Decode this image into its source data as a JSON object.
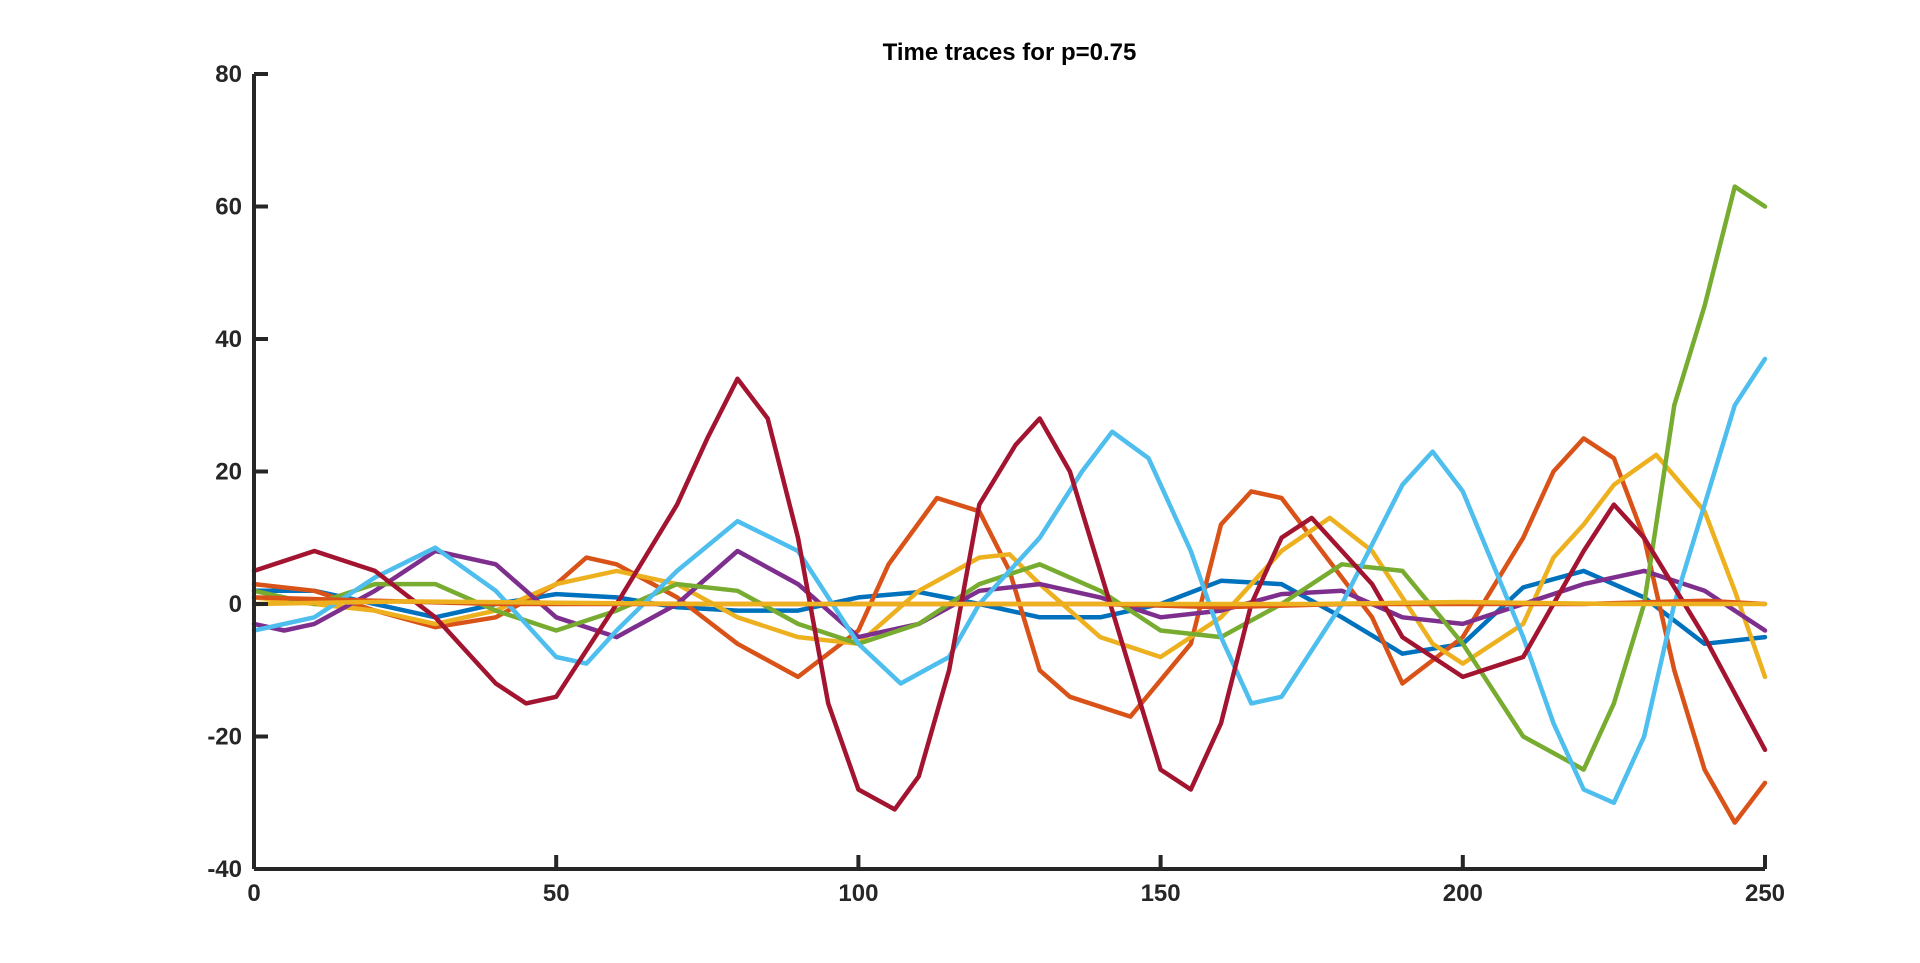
{
  "chart_data": {
    "type": "line",
    "title": "Time traces for p=0.75",
    "xlabel": "",
    "ylabel": "",
    "xlim": [
      0,
      250
    ],
    "ylim": [
      -40,
      80
    ],
    "x_ticks": [
      "0",
      "50",
      "100",
      "150",
      "200",
      "250"
    ],
    "y_ticks": [
      "-40",
      "-20",
      "0",
      "20",
      "40",
      "60",
      "80"
    ],
    "grid": false,
    "legend": false,
    "series": [
      {
        "color": "#0072BD",
        "points": [
          [
            0,
            2
          ],
          [
            10,
            2
          ],
          [
            20,
            0
          ],
          [
            30,
            -2
          ],
          [
            40,
            0
          ],
          [
            50,
            1.5
          ],
          [
            60,
            1
          ],
          [
            70,
            -0.5
          ],
          [
            80,
            -1
          ],
          [
            90,
            -1
          ],
          [
            100,
            1
          ],
          [
            110,
            1.8
          ],
          [
            120,
            0
          ],
          [
            130,
            -2
          ],
          [
            140,
            -2
          ],
          [
            150,
            0
          ],
          [
            160,
            3.5
          ],
          [
            170,
            3
          ],
          [
            180,
            -2
          ],
          [
            190,
            -7.5
          ],
          [
            200,
            -6
          ],
          [
            210,
            2.5
          ],
          [
            220,
            5
          ],
          [
            230,
            1
          ],
          [
            240,
            -6
          ],
          [
            250,
            -5
          ]
        ]
      },
      {
        "color": "#D95319",
        "points": [
          [
            0,
            3
          ],
          [
            10,
            2
          ],
          [
            20,
            -1
          ],
          [
            30,
            -3.5
          ],
          [
            40,
            -2
          ],
          [
            50,
            3
          ],
          [
            55,
            7
          ],
          [
            60,
            6
          ],
          [
            70,
            1
          ],
          [
            80,
            -6
          ],
          [
            90,
            -11
          ],
          [
            100,
            -4
          ],
          [
            105,
            6
          ],
          [
            113,
            16
          ],
          [
            120,
            14
          ],
          [
            125,
            5
          ],
          [
            130,
            -10
          ],
          [
            135,
            -14
          ],
          [
            145,
            -17
          ],
          [
            155,
            -6
          ],
          [
            160,
            12
          ],
          [
            165,
            17
          ],
          [
            170,
            16
          ],
          [
            175,
            10
          ],
          [
            185,
            -2
          ],
          [
            190,
            -12
          ],
          [
            200,
            -5
          ],
          [
            210,
            10
          ],
          [
            215,
            20
          ],
          [
            220,
            25
          ],
          [
            225,
            22
          ],
          [
            230,
            10
          ],
          [
            235,
            -10
          ],
          [
            240,
            -25
          ],
          [
            245,
            -33
          ],
          [
            250,
            -27
          ]
        ]
      },
      {
        "color": "#EDB120",
        "points": [
          [
            0,
            1
          ],
          [
            10,
            0
          ],
          [
            20,
            -1
          ],
          [
            30,
            -3
          ],
          [
            40,
            -1
          ],
          [
            50,
            3
          ],
          [
            60,
            5
          ],
          [
            70,
            3
          ],
          [
            80,
            -2
          ],
          [
            90,
            -5
          ],
          [
            100,
            -6
          ],
          [
            110,
            2
          ],
          [
            120,
            7
          ],
          [
            125,
            7.5
          ],
          [
            130,
            3
          ],
          [
            140,
            -5
          ],
          [
            150,
            -8
          ],
          [
            160,
            -2
          ],
          [
            170,
            8
          ],
          [
            178,
            13
          ],
          [
            185,
            8
          ],
          [
            195,
            -6
          ],
          [
            200,
            -9
          ],
          [
            210,
            -3
          ],
          [
            215,
            7
          ],
          [
            220,
            12
          ],
          [
            225,
            18
          ],
          [
            232,
            22.5
          ],
          [
            240,
            14
          ],
          [
            245,
            2
          ],
          [
            250,
            -11
          ]
        ]
      },
      {
        "color": "#7E2F8E",
        "points": [
          [
            0,
            -3
          ],
          [
            5,
            -4
          ],
          [
            10,
            -3
          ],
          [
            20,
            2
          ],
          [
            30,
            8
          ],
          [
            40,
            6
          ],
          [
            50,
            -2
          ],
          [
            60,
            -5
          ],
          [
            70,
            0
          ],
          [
            80,
            8
          ],
          [
            90,
            3
          ],
          [
            100,
            -5
          ],
          [
            110,
            -3
          ],
          [
            120,
            2
          ],
          [
            130,
            3
          ],
          [
            140,
            1
          ],
          [
            150,
            -2
          ],
          [
            160,
            -1
          ],
          [
            170,
            1.5
          ],
          [
            180,
            2
          ],
          [
            190,
            -2
          ],
          [
            200,
            -3
          ],
          [
            210,
            0
          ],
          [
            220,
            3
          ],
          [
            230,
            5
          ],
          [
            240,
            2
          ],
          [
            250,
            -4
          ]
        ]
      },
      {
        "color": "#77AC30",
        "points": [
          [
            0,
            2
          ],
          [
            10,
            0
          ],
          [
            20,
            3
          ],
          [
            30,
            3
          ],
          [
            40,
            -1
          ],
          [
            50,
            -4
          ],
          [
            60,
            -1
          ],
          [
            70,
            3
          ],
          [
            80,
            2
          ],
          [
            90,
            -3
          ],
          [
            100,
            -6
          ],
          [
            110,
            -3
          ],
          [
            120,
            3
          ],
          [
            130,
            6
          ],
          [
            140,
            2
          ],
          [
            150,
            -4
          ],
          [
            160,
            -5
          ],
          [
            170,
            0
          ],
          [
            180,
            6
          ],
          [
            190,
            5
          ],
          [
            200,
            -6
          ],
          [
            210,
            -20
          ],
          [
            220,
            -25
          ],
          [
            225,
            -15
          ],
          [
            230,
            0
          ],
          [
            235,
            30
          ],
          [
            240,
            45
          ],
          [
            245,
            63
          ],
          [
            250,
            60
          ]
        ]
      },
      {
        "color": "#4DBEEE",
        "points": [
          [
            0,
            -4
          ],
          [
            10,
            -2
          ],
          [
            20,
            4
          ],
          [
            30,
            8.5
          ],
          [
            40,
            2
          ],
          [
            50,
            -8
          ],
          [
            55,
            -9
          ],
          [
            60,
            -4
          ],
          [
            70,
            5
          ],
          [
            80,
            12.5
          ],
          [
            90,
            8
          ],
          [
            100,
            -6
          ],
          [
            107,
            -12
          ],
          [
            115,
            -8
          ],
          [
            120,
            0
          ],
          [
            130,
            10
          ],
          [
            137,
            20
          ],
          [
            142,
            26
          ],
          [
            148,
            22
          ],
          [
            155,
            8
          ],
          [
            160,
            -5
          ],
          [
            165,
            -15
          ],
          [
            170,
            -14
          ],
          [
            180,
            0
          ],
          [
            190,
            18
          ],
          [
            195,
            23
          ],
          [
            200,
            17
          ],
          [
            210,
            -5
          ],
          [
            215,
            -18
          ],
          [
            220,
            -28
          ],
          [
            225,
            -30
          ],
          [
            230,
            -20
          ],
          [
            235,
            0
          ],
          [
            240,
            15
          ],
          [
            245,
            30
          ],
          [
            250,
            37
          ]
        ]
      },
      {
        "color": "#A2142F",
        "points": [
          [
            0,
            5
          ],
          [
            10,
            8
          ],
          [
            20,
            5
          ],
          [
            30,
            -2
          ],
          [
            40,
            -12
          ],
          [
            45,
            -15
          ],
          [
            50,
            -14
          ],
          [
            60,
            0
          ],
          [
            70,
            15
          ],
          [
            75,
            25
          ],
          [
            80,
            34
          ],
          [
            85,
            28
          ],
          [
            90,
            10
          ],
          [
            95,
            -15
          ],
          [
            100,
            -28
          ],
          [
            106,
            -31
          ],
          [
            110,
            -26
          ],
          [
            115,
            -10
          ],
          [
            120,
            15
          ],
          [
            126,
            24
          ],
          [
            130,
            28
          ],
          [
            135,
            20
          ],
          [
            140,
            5
          ],
          [
            145,
            -10
          ],
          [
            150,
            -25
          ],
          [
            155,
            -28
          ],
          [
            160,
            -18
          ],
          [
            165,
            0
          ],
          [
            170,
            10
          ],
          [
            175,
            13
          ],
          [
            185,
            3
          ],
          [
            190,
            -5
          ],
          [
            200,
            -11
          ],
          [
            210,
            -8
          ],
          [
            220,
            8
          ],
          [
            225,
            15
          ],
          [
            230,
            10
          ],
          [
            240,
            -5
          ],
          [
            250,
            -22
          ]
        ]
      },
      {
        "color": "#D95319",
        "points": [
          [
            0,
            1
          ],
          [
            20,
            0.5
          ],
          [
            40,
            0
          ],
          [
            60,
            0
          ],
          [
            80,
            0
          ],
          [
            100,
            0
          ],
          [
            120,
            0
          ],
          [
            140,
            0
          ],
          [
            160,
            -0.5
          ],
          [
            180,
            0
          ],
          [
            200,
            0
          ],
          [
            220,
            0
          ],
          [
            240,
            0.5
          ],
          [
            250,
            0
          ]
        ]
      },
      {
        "color": "#EDB120",
        "points": [
          [
            0,
            0
          ],
          [
            25,
            0.4
          ],
          [
            50,
            0.2
          ],
          [
            75,
            0
          ],
          [
            100,
            0
          ],
          [
            125,
            0
          ],
          [
            150,
            0
          ],
          [
            175,
            0
          ],
          [
            200,
            0.3
          ],
          [
            225,
            0
          ],
          [
            250,
            0
          ]
        ]
      }
    ]
  }
}
